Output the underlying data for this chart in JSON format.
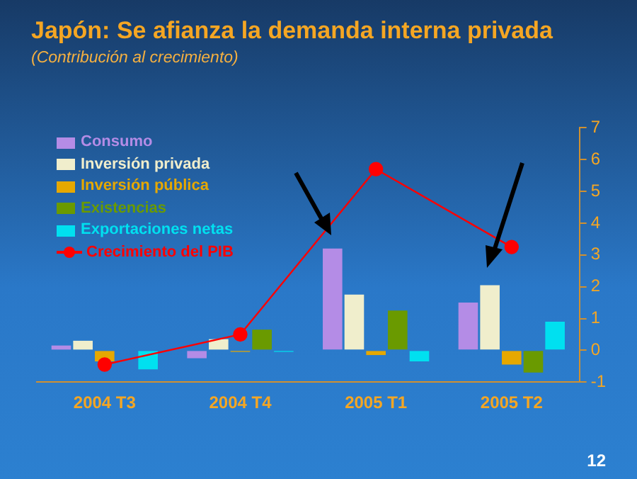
{
  "chart_data": {
    "type": "bar",
    "title": "Japón: Se afianza la demanda interna privada",
    "subtitle": "(Contribución al crecimiento)",
    "categories": [
      "2004 T3",
      "2004 T4",
      "2005 T1",
      "2005 T2"
    ],
    "series": [
      {
        "name": "Consumo",
        "color": "#b48ce6",
        "values": [
          0.15,
          -0.25,
          3.2,
          1.5
        ]
      },
      {
        "name": "Inversión privada",
        "color": "#f0eecc",
        "values": [
          0.3,
          0.35,
          1.75,
          2.05
        ]
      },
      {
        "name": "Inversión pública",
        "color": "#e6a800",
        "values": [
          -0.35,
          -0.05,
          -0.15,
          -0.45
        ]
      },
      {
        "name": "Existencias",
        "color": "#6a9a00",
        "values": [
          null,
          0.65,
          1.25,
          -0.7
        ]
      },
      {
        "name": "Exportaciones netas",
        "color": "#00e0f0",
        "values": [
          -0.6,
          -0.05,
          -0.35,
          0.9
        ]
      },
      {
        "name": "Crecimiento del PIB",
        "type": "line",
        "color": "#ff0000",
        "values": [
          -0.45,
          0.5,
          5.7,
          3.25
        ]
      }
    ],
    "ylim": [
      -1,
      7
    ],
    "yticks": [
      -1,
      0,
      1,
      2,
      3,
      4,
      5,
      6,
      7
    ],
    "grid": false,
    "legend": "top left",
    "marker": "circle",
    "annotations": [
      "12"
    ]
  }
}
